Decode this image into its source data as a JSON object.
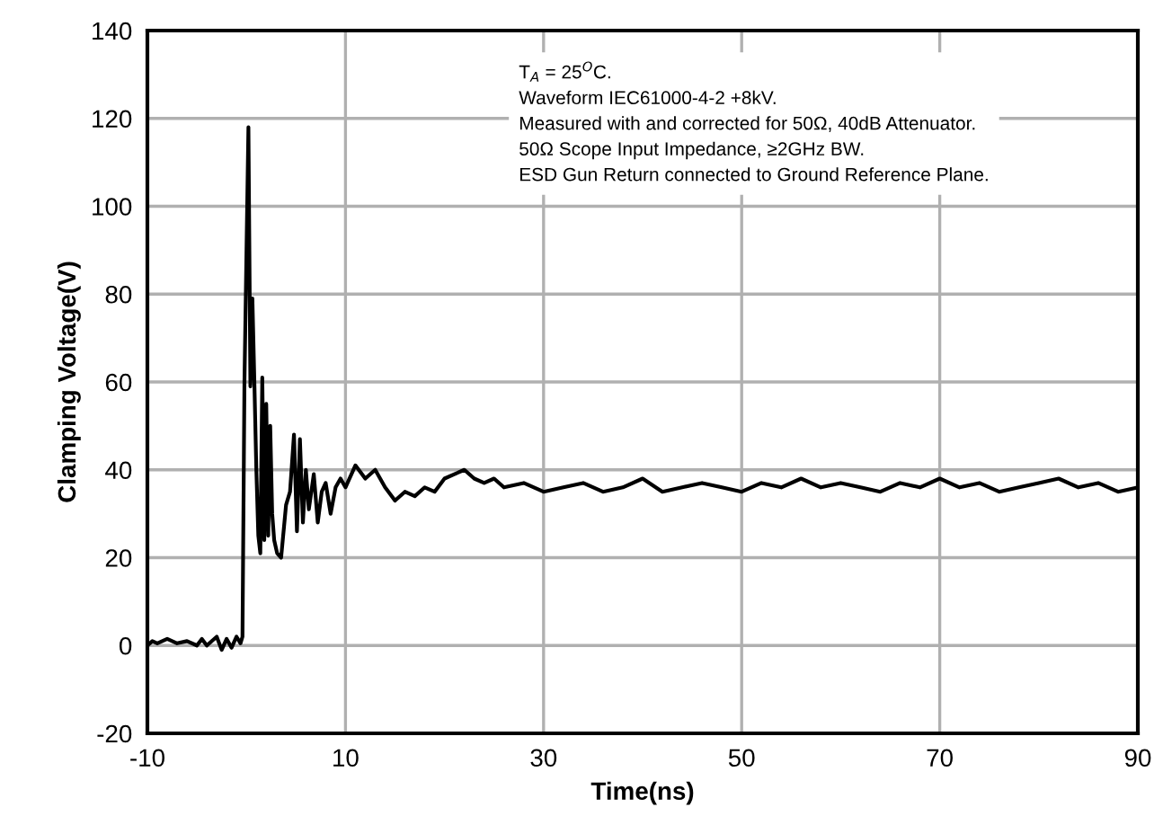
{
  "chart_data": {
    "type": "line",
    "xlabel": "Time(ns)",
    "ylabel": "Clamping Voltage(V)",
    "xlim": [
      -10,
      90
    ],
    "xticks": [
      -10,
      10,
      30,
      50,
      70,
      90
    ],
    "ylim": [
      -20,
      140
    ],
    "yticks": [
      -20,
      0,
      20,
      40,
      60,
      80,
      100,
      120,
      140
    ],
    "grid": true,
    "marker": "none",
    "line_style": "solid",
    "annotations": [
      "T$_{A}$ = 25$^{O}$C.\nWaveform IEC61000-4-2 +8kV.\nMeasured with and corrected for 50Ω, 40dB Attenuator.\n50Ω Scope Input Impedance, ≥2GHz BW.\nESD Gun Return connected to Ground Reference Plane."
    ],
    "series": [
      {
        "color": "#000000",
        "x": [
          -10,
          -9.5,
          -9,
          -8,
          -7,
          -6,
          -5,
          -4.5,
          -4,
          -3,
          -2.5,
          -2,
          -1.5,
          -1,
          -0.6,
          -0.4,
          -0.2,
          0.2,
          0.4,
          0.6,
          0.8,
          1.0,
          1.2,
          1.4,
          1.6,
          1.8,
          2.0,
          2.2,
          2.4,
          2.6,
          2.8,
          3.1,
          3.5,
          4.0,
          4.4,
          4.8,
          5.1,
          5.4,
          5.7,
          6.0,
          6.3,
          6.8,
          7.2,
          7.6,
          8.0,
          8.5,
          9.0,
          9.5,
          10,
          11,
          12,
          13,
          14,
          15,
          16,
          17,
          18,
          19,
          20,
          21,
          22,
          23,
          24,
          25,
          26,
          28,
          30,
          32,
          34,
          36,
          38,
          40,
          42,
          44,
          46,
          48,
          50,
          52,
          54,
          56,
          58,
          60,
          62,
          64,
          66,
          68,
          70,
          72,
          74,
          76,
          78,
          80,
          82,
          84,
          86,
          88,
          90
        ],
        "values": [
          0,
          1,
          0.5,
          1.5,
          0.5,
          1,
          0,
          1.5,
          0,
          2,
          -1,
          1.5,
          -0.5,
          2,
          0.5,
          2,
          60,
          118,
          59,
          79,
          60,
          40,
          25,
          21,
          61,
          24,
          55,
          25,
          50,
          30,
          24,
          21,
          20,
          32,
          35,
          48,
          26,
          47,
          28,
          40,
          31,
          39,
          28,
          35,
          37,
          30,
          36,
          38,
          36,
          41,
          38,
          40,
          36,
          33,
          35,
          34,
          36,
          35,
          38,
          39,
          40,
          38,
          37,
          38,
          36,
          37,
          35,
          36,
          37,
          35,
          36,
          38,
          35,
          36,
          37,
          36,
          35,
          37,
          36,
          38,
          36,
          37,
          36,
          35,
          37,
          36,
          38,
          36,
          37,
          35,
          36,
          37,
          38,
          36,
          37,
          35,
          36
        ]
      }
    ]
  }
}
